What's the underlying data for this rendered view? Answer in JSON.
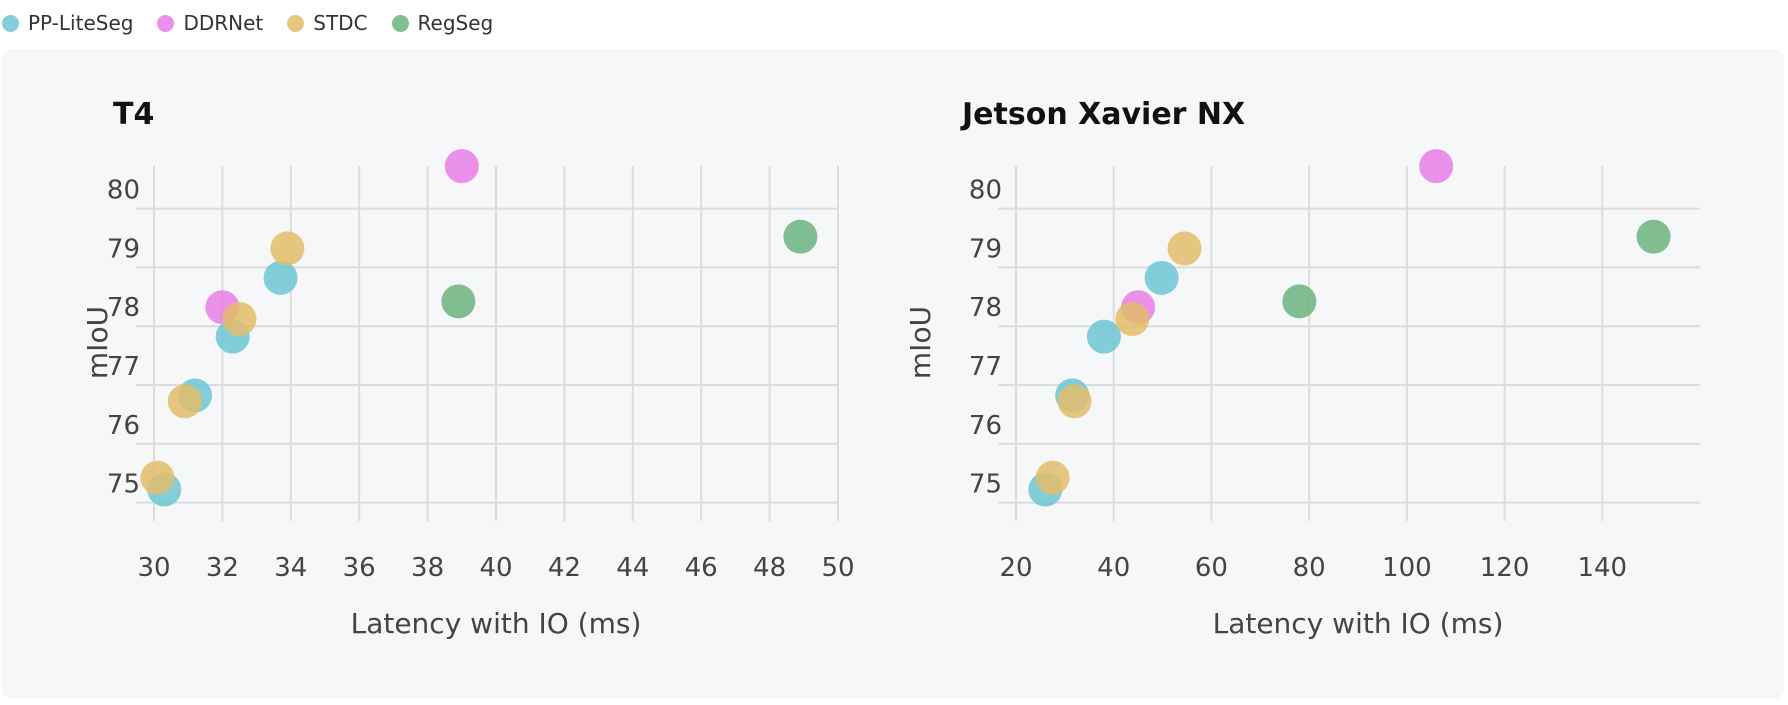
{
  "legend": [
    {
      "name": "PP-LiteSeg",
      "color": "#6cc5d4"
    },
    {
      "name": "DDRNet",
      "color": "#e87de8"
    },
    {
      "name": "STDC",
      "color": "#e3bd6a"
    },
    {
      "name": "RegSeg",
      "color": "#6bb37e"
    }
  ],
  "chart_data": [
    {
      "type": "scatter",
      "title": "T4",
      "xlabel": "Latency with IO (ms)",
      "ylabel": "mIoU",
      "xlim": [
        30,
        50
      ],
      "ylim": [
        74.5,
        80.3
      ],
      "xticks": [
        30,
        32,
        34,
        36,
        38,
        40,
        42,
        44,
        46,
        48,
        50
      ],
      "yticks": [
        75,
        76,
        77,
        78,
        79,
        80
      ],
      "grid": true,
      "legend": "top-left",
      "series": [
        {
          "name": "PP-LiteSeg",
          "color": "#6cc5d4",
          "points": [
            [
              30.3,
              74.9
            ],
            [
              31.2,
              76.5
            ],
            [
              32.3,
              77.5
            ],
            [
              33.7,
              78.5
            ]
          ]
        },
        {
          "name": "DDRNet",
          "color": "#e87de8",
          "points": [
            [
              32.0,
              78.0
            ],
            [
              39.0,
              80.4
            ]
          ]
        },
        {
          "name": "STDC",
          "color": "#e3bd6a",
          "points": [
            [
              30.1,
              75.1
            ],
            [
              30.9,
              76.4
            ],
            [
              32.5,
              77.8
            ],
            [
              33.9,
              79.0
            ]
          ]
        },
        {
          "name": "RegSeg",
          "color": "#6bb37e",
          "points": [
            [
              38.9,
              78.1
            ],
            [
              48.9,
              79.2
            ]
          ]
        }
      ]
    },
    {
      "type": "scatter",
      "title": "Jetson Xavier NX",
      "xlabel": "Latency with IO (ms)",
      "ylabel": "mIoU",
      "xlim": [
        20,
        160
      ],
      "ylim": [
        74.5,
        80.3
      ],
      "xticks": [
        20,
        40,
        60,
        80,
        100,
        120,
        140
      ],
      "yticks": [
        75,
        76,
        77,
        78,
        79,
        80
      ],
      "grid": true,
      "legend": "top-left",
      "series": [
        {
          "name": "PP-LiteSeg",
          "color": "#6cc5d4",
          "points": [
            [
              26.0,
              74.9
            ],
            [
              31.5,
              76.5
            ],
            [
              38.0,
              77.5
            ],
            [
              49.8,
              78.5
            ]
          ]
        },
        {
          "name": "DDRNet",
          "color": "#e87de8",
          "points": [
            [
              45.0,
              78.0
            ],
            [
              106.0,
              80.4
            ]
          ]
        },
        {
          "name": "STDC",
          "color": "#e3bd6a",
          "points": [
            [
              27.5,
              75.1
            ],
            [
              32.0,
              76.4
            ],
            [
              43.8,
              77.8
            ],
            [
              54.5,
              79.0
            ]
          ]
        },
        {
          "name": "RegSeg",
          "color": "#6bb37e",
          "points": [
            [
              78.0,
              78.1
            ],
            [
              150.5,
              79.2
            ]
          ]
        }
      ]
    }
  ]
}
